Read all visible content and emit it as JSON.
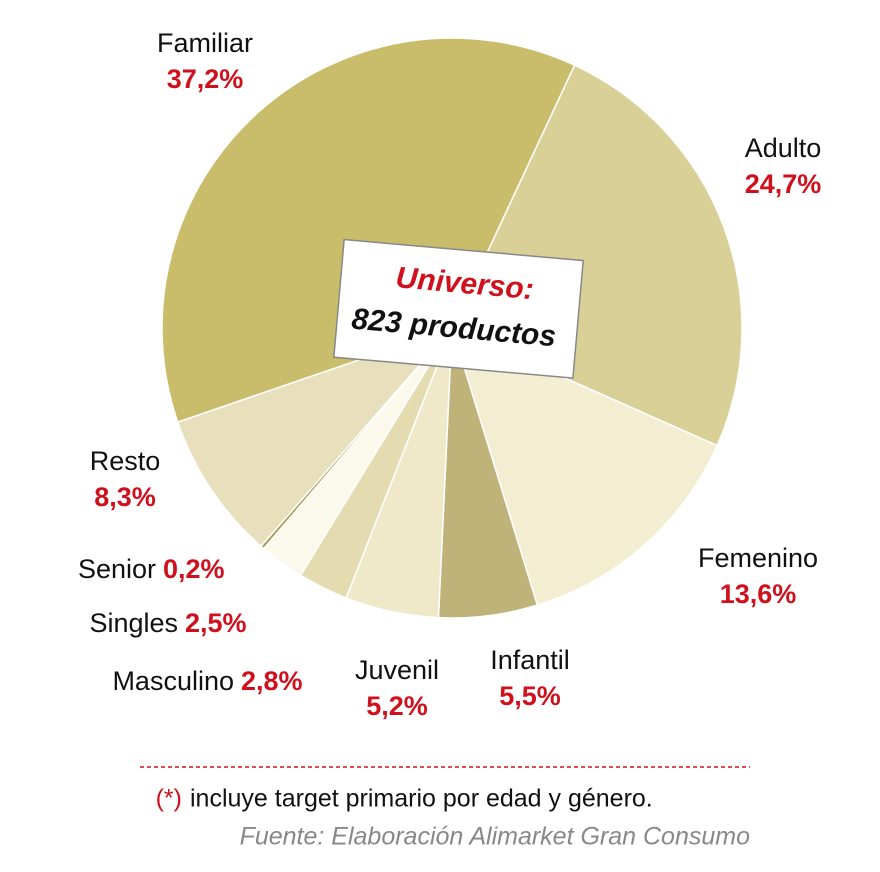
{
  "chart_data": {
    "type": "pie",
    "categories": [
      "Adulto",
      "Femenino",
      "Infantil",
      "Juvenil",
      "Masculino",
      "Singles",
      "Senior",
      "Resto",
      "Familiar"
    ],
    "values": [
      24.7,
      13.6,
      5.5,
      5.2,
      2.8,
      2.5,
      0.2,
      8.3,
      37.2
    ],
    "value_labels": [
      "24,7%",
      "13,6%",
      "5,5%",
      "5,2%",
      "2,8%",
      "2,5%",
      "0,2%",
      "8,3%",
      "37,2%"
    ],
    "colors": [
      "#d9d098",
      "#f3eed2",
      "#bfb37a",
      "#efe8c9",
      "#e4dbb1",
      "#fbf8ec",
      "#a89b4e",
      "#e8e0bd",
      "#c9bd6b"
    ],
    "center_title": "Universo:",
    "center_subtitle": "823 productos",
    "note_marker": "(*)",
    "note": "incluye target primario por edad y género.",
    "source": "Fuente: Elaboración Alimarket Gran Consumo"
  }
}
